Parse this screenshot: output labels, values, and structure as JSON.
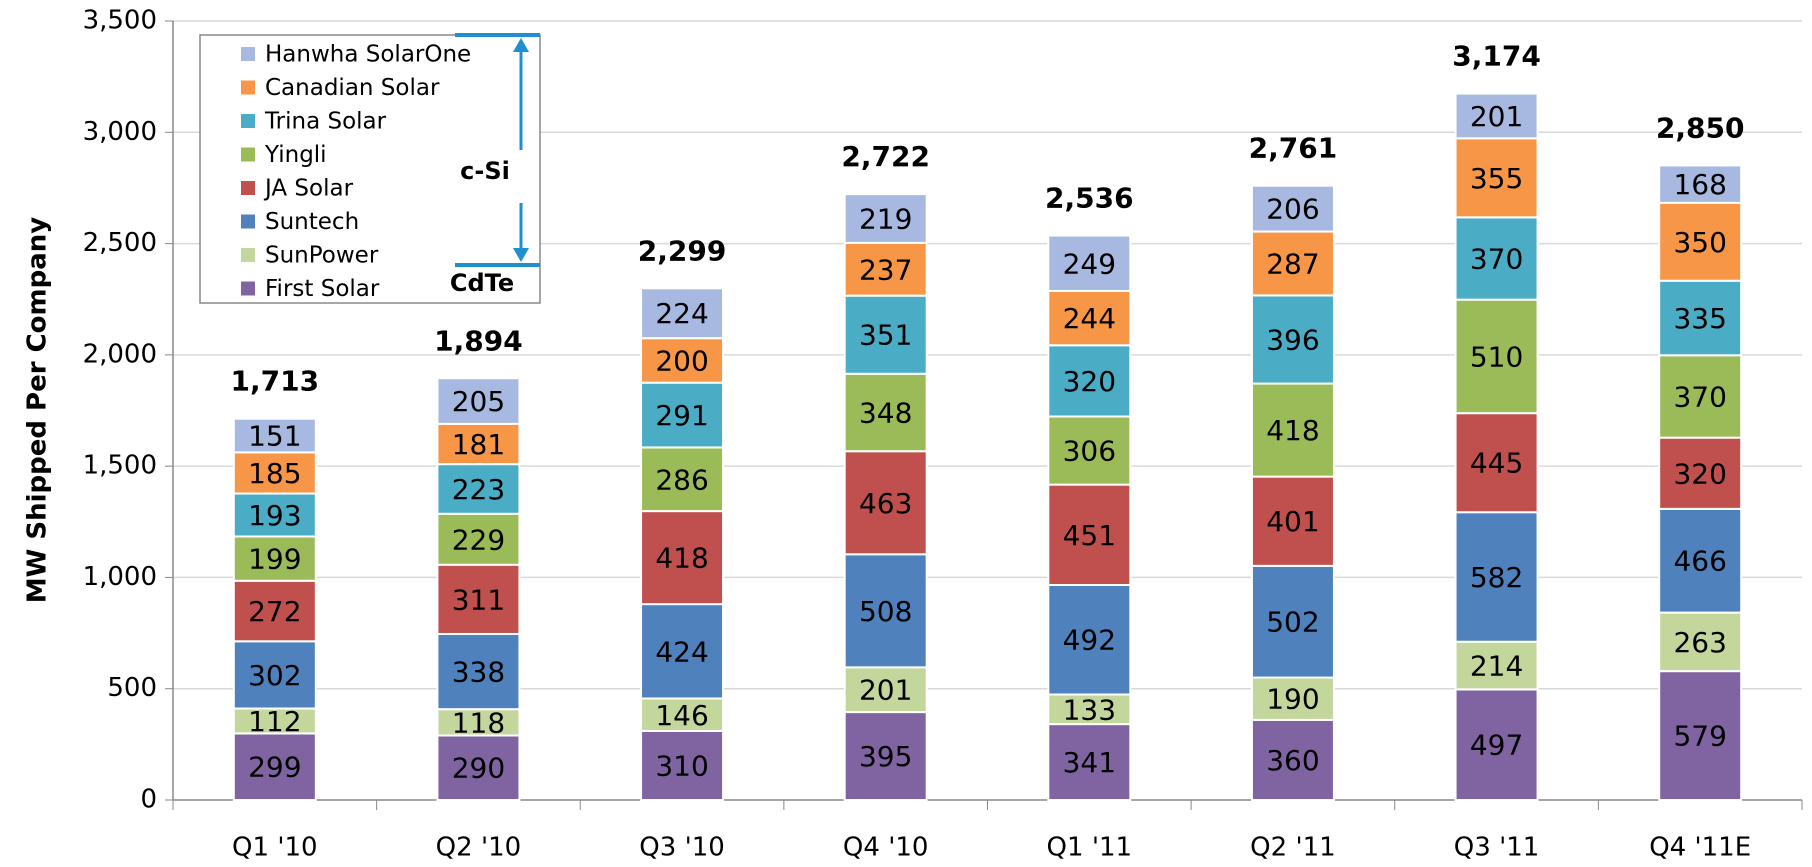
{
  "chart_data": {
    "type": "stacked_bar",
    "y_label": "MW Shipped Per Company",
    "categories": [
      "Q1 '10",
      "Q2 '10",
      "Q3 '10",
      "Q4 '10",
      "Q1 '11",
      "Q2 '11",
      "Q3 '11",
      "Q4 '11E"
    ],
    "series": [
      {
        "name": "First Solar",
        "color": "#8064a2",
        "values": [
          299,
          290,
          310,
          395,
          341,
          360,
          497,
          579
        ]
      },
      {
        "name": "SunPower",
        "color": "#c3d69b",
        "values": [
          112,
          118,
          146,
          201,
          133,
          190,
          214,
          263
        ]
      },
      {
        "name": "Suntech",
        "color": "#4f81bd",
        "values": [
          302,
          338,
          424,
          508,
          492,
          502,
          582,
          466
        ]
      },
      {
        "name": "JA Solar",
        "color": "#c0504d",
        "values": [
          272,
          311,
          418,
          463,
          451,
          401,
          445,
          320
        ]
      },
      {
        "name": "Yingli",
        "color": "#9bbb59",
        "values": [
          199,
          229,
          286,
          348,
          306,
          418,
          510,
          370
        ]
      },
      {
        "name": "Trina Solar",
        "color": "#4bacc6",
        "values": [
          193,
          223,
          291,
          351,
          320,
          396,
          370,
          335
        ]
      },
      {
        "name": "Canadian Solar",
        "color": "#f79646",
        "values": [
          185,
          181,
          200,
          237,
          244,
          287,
          355,
          350
        ]
      },
      {
        "name": "Hanwha SolarOne",
        "color": "#a7b9e0",
        "values": [
          151,
          205,
          224,
          219,
          249,
          206,
          201,
          168
        ]
      }
    ],
    "totals": [
      1713,
      1894,
      2299,
      2722,
      2536,
      2761,
      3174,
      2850
    ],
    "total_labels": [
      "1,713",
      "1,894",
      "2,299",
      "2,722",
      "2,536",
      "2,761",
      "3,174",
      "2,850"
    ],
    "annotations": [
      "c-Si",
      "CdTe"
    ],
    "ylim": [
      0,
      3500
    ],
    "yticks": [
      0,
      500,
      {
        "value": 1000,
        "label": "1,000"
      },
      {
        "value": 1500,
        "label": "1,500"
      },
      {
        "value": 2000,
        "label": "2,000"
      },
      {
        "value": 2500,
        "label": "2,500"
      },
      {
        "value": 3000,
        "label": "3,000"
      },
      {
        "value": 3500,
        "label": "3,500"
      }
    ],
    "grid": true,
    "legend": "upper left"
  }
}
